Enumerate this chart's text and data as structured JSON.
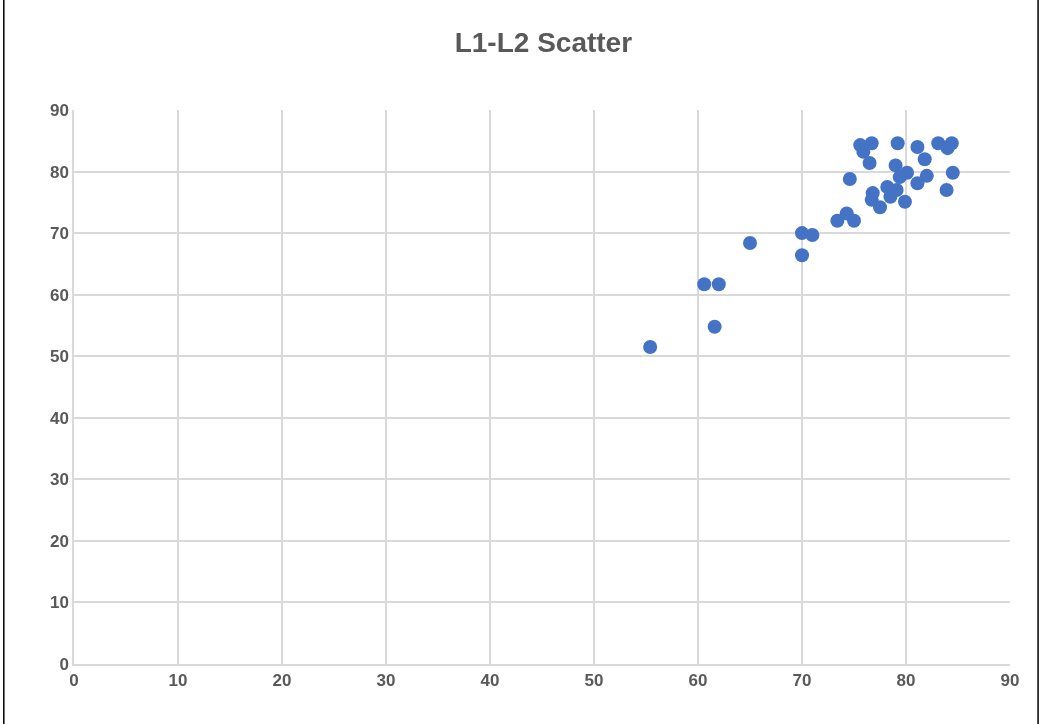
{
  "chart_data": {
    "type": "scatter",
    "title": "L1-L2 Scatter",
    "x": [
      55.4,
      60.6,
      62.0,
      61.6,
      65.0,
      70.0,
      71.0,
      70.0,
      73.4,
      74.3,
      75.0,
      74.6,
      75.6,
      76.7,
      79.2,
      81.1,
      83.1,
      84.4,
      84.0,
      75.9,
      76.5,
      81.8,
      79.0,
      84.5,
      82.0,
      81.1,
      83.9,
      79.4,
      80.1,
      76.8,
      76.7,
      77.5,
      79.9,
      78.2,
      79.1,
      78.5
    ],
    "values": [
      51.5,
      61.7,
      61.7,
      54.8,
      68.4,
      70.0,
      69.7,
      66.4,
      72.0,
      73.2,
      72.0,
      78.8,
      84.3,
      84.6,
      84.6,
      84.0,
      84.6,
      84.6,
      83.8,
      83.2,
      81.4,
      82.0,
      81.0,
      79.8,
      79.3,
      78.1,
      77.0,
      79.1,
      79.8,
      76.5,
      75.4,
      74.2,
      75.1,
      77.5,
      77.0,
      75.9
    ],
    "color": "#4472c4",
    "marker": "circle",
    "xlim": [
      0,
      90
    ],
    "xticks": [
      0,
      10,
      20,
      30,
      40,
      50,
      60,
      70,
      80,
      90
    ],
    "ylim": [
      0,
      90
    ],
    "yticks": [
      0,
      10,
      20,
      30,
      40,
      50,
      60,
      70,
      80,
      90
    ],
    "grid": true
  }
}
